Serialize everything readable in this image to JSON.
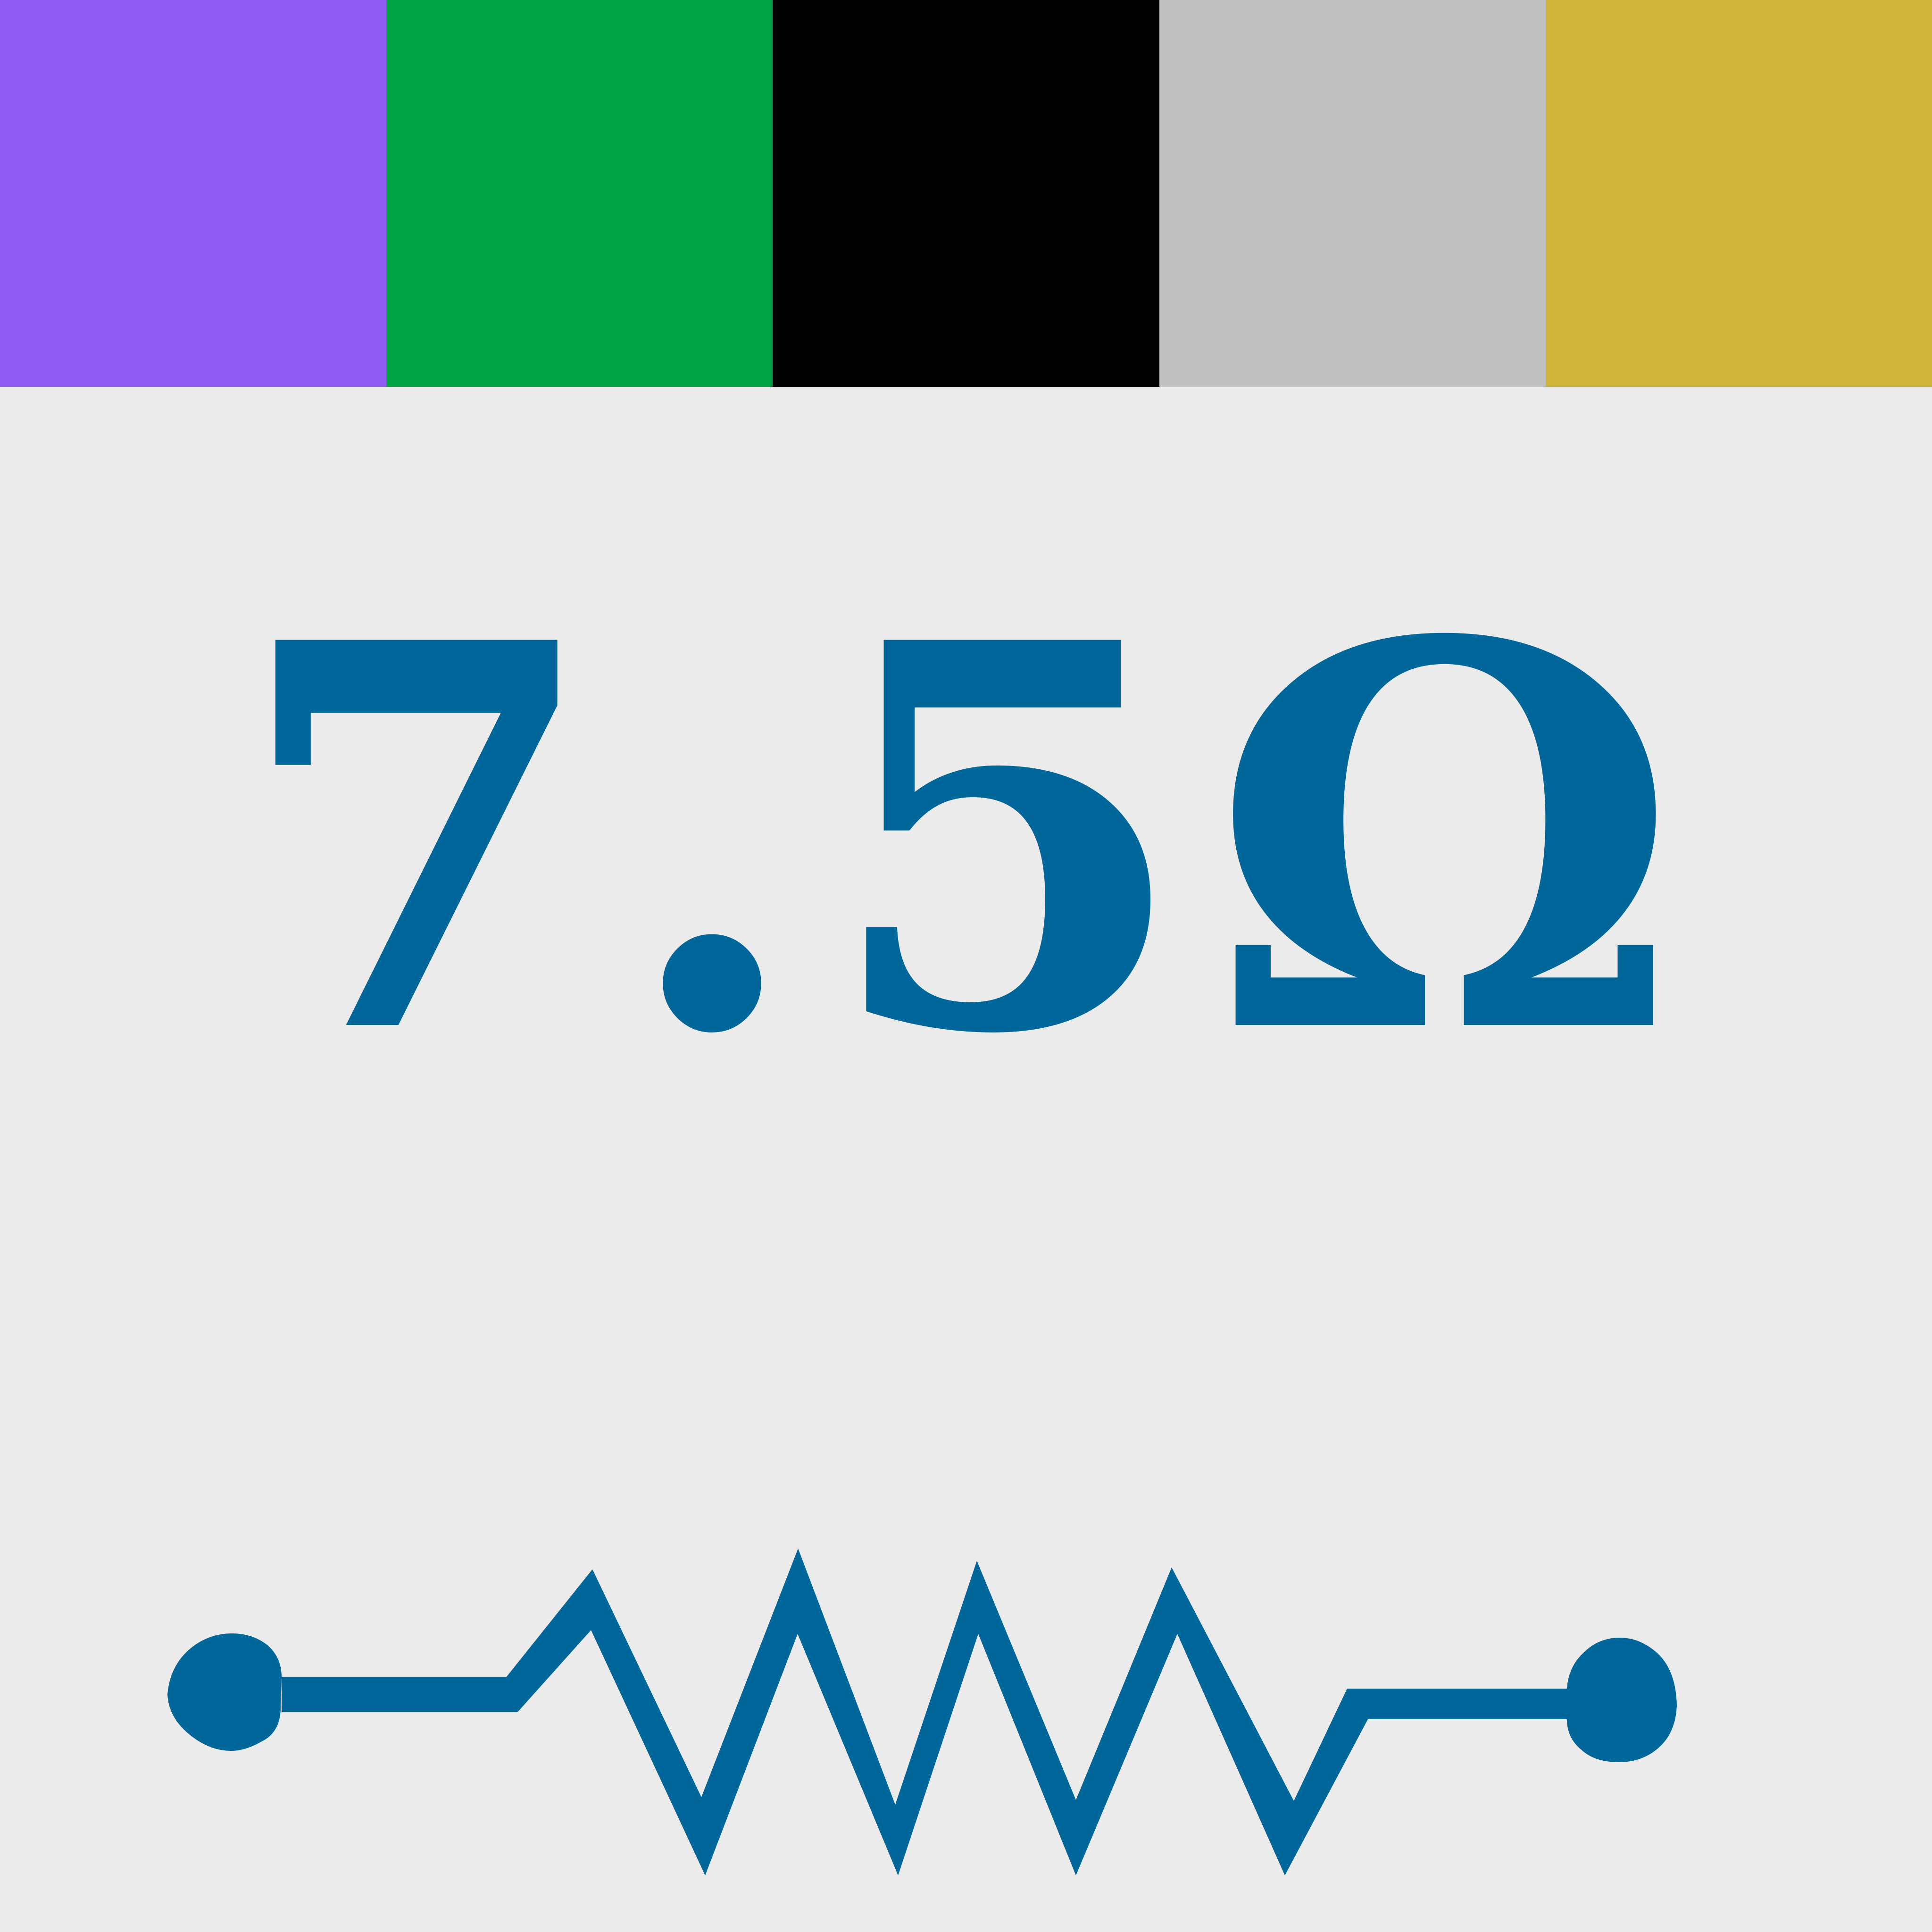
{
  "resistor": {
    "value_label": "7.5Ω",
    "label_color": "#016699",
    "background_color": "#ebebeb",
    "color_bands": [
      {
        "name": "violet",
        "color": "#8e5cf3"
      },
      {
        "name": "green",
        "color": "#00a444"
      },
      {
        "name": "black",
        "color": "#000000"
      },
      {
        "name": "silver",
        "color": "#c0c0c0"
      },
      {
        "name": "gold",
        "color": "#cfb43c"
      }
    ],
    "symbol": {
      "icon": "resistor-symbol-icon",
      "color": "#016699"
    }
  }
}
